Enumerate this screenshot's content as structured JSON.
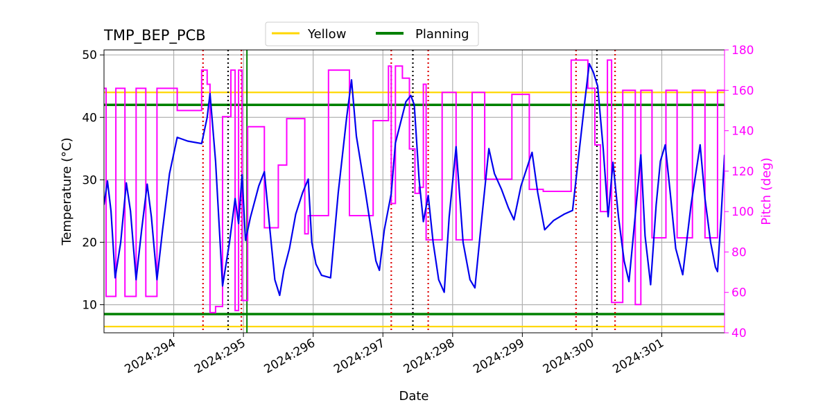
{
  "chart_data": {
    "type": "line",
    "title": "TMP_BEP_PCB",
    "xlabel": "Date",
    "ylabel": "Temperature ($^\\circ$C)",
    "ylabel_display": "Temperature (°C)",
    "y2label": "Pitch (deg)",
    "xlim": [
      293.0,
      301.9
    ],
    "ylim": [
      5.5,
      50.8
    ],
    "y2lim": [
      40,
      180
    ],
    "x_ticks": [
      294,
      295,
      296,
      297,
      298,
      299,
      300,
      301
    ],
    "x_tick_labels": [
      "2024:294",
      "2024:295",
      "2024:296",
      "2024:297",
      "2024:298",
      "2024:299",
      "2024:300",
      "2024:301"
    ],
    "y_ticks": [
      10,
      20,
      30,
      40,
      50
    ],
    "y_tick_labels": [
      "10",
      "20",
      "30",
      "40",
      "50"
    ],
    "y2_ticks": [
      40,
      60,
      80,
      100,
      120,
      140,
      160,
      180
    ],
    "y2_tick_labels": [
      "40",
      "60",
      "80",
      "100",
      "120",
      "140",
      "160",
      "180"
    ],
    "grid": true,
    "legend_position": "top-center",
    "legend": [
      {
        "name": "Yellow",
        "color": "#FFD700"
      },
      {
        "name": "Planning",
        "color": "#008000"
      }
    ],
    "colors": {
      "temperature": "#0000EE",
      "pitch": "#FF00FF",
      "yellow": "#FFD700",
      "planning": "#008000",
      "red_marker": "#DD0000",
      "black_marker": "#000000",
      "grid": "#B0B0B0"
    },
    "limits": {
      "yellow_high": 44.0,
      "yellow_low": 6.5,
      "planning_high": 42.0,
      "planning_low": 8.5
    },
    "markers": {
      "red_dotted_x": [
        294.42,
        294.97,
        297.12,
        297.65,
        299.77,
        300.33
      ],
      "black_dotted_x": [
        294.78,
        297.43,
        300.07
      ],
      "green_solid_x": [
        295.05
      ]
    },
    "series": [
      {
        "name": "Temperature",
        "axis": "left",
        "points": [
          [
            293.0,
            26
          ],
          [
            293.05,
            29.8
          ],
          [
            293.1,
            25
          ],
          [
            293.16,
            14.3
          ],
          [
            293.24,
            20
          ],
          [
            293.32,
            29.5
          ],
          [
            293.38,
            25
          ],
          [
            293.46,
            14
          ],
          [
            293.54,
            22
          ],
          [
            293.62,
            29.3
          ],
          [
            293.68,
            24
          ],
          [
            293.76,
            14
          ],
          [
            293.84,
            22
          ],
          [
            293.94,
            31
          ],
          [
            294.05,
            36.8
          ],
          [
            294.2,
            36.2
          ],
          [
            294.4,
            35.8
          ],
          [
            294.48,
            40
          ],
          [
            294.52,
            43.8
          ],
          [
            294.6,
            33
          ],
          [
            294.7,
            13
          ],
          [
            294.8,
            20
          ],
          [
            294.88,
            27
          ],
          [
            294.93,
            23
          ],
          [
            294.98,
            30.8
          ],
          [
            295.03,
            20.3
          ],
          [
            295.1,
            24
          ],
          [
            295.22,
            29
          ],
          [
            295.3,
            31.3
          ],
          [
            295.38,
            22
          ],
          [
            295.45,
            14
          ],
          [
            295.52,
            11.5
          ],
          [
            295.58,
            15.5
          ],
          [
            295.66,
            19
          ],
          [
            295.75,
            24.5
          ],
          [
            295.85,
            28
          ],
          [
            295.93,
            30.1
          ],
          [
            295.98,
            20
          ],
          [
            296.04,
            16.5
          ],
          [
            296.12,
            14.7
          ],
          [
            296.25,
            14.3
          ],
          [
            296.36,
            28
          ],
          [
            296.48,
            40
          ],
          [
            296.55,
            46
          ],
          [
            296.62,
            37
          ],
          [
            296.75,
            28
          ],
          [
            296.9,
            17
          ],
          [
            296.95,
            15.5
          ],
          [
            297.02,
            22
          ],
          [
            297.12,
            27.8
          ],
          [
            297.18,
            35.9
          ],
          [
            297.25,
            39
          ],
          [
            297.33,
            42.5
          ],
          [
            297.4,
            43.5
          ],
          [
            297.45,
            42
          ],
          [
            297.52,
            30
          ],
          [
            297.58,
            23.3
          ],
          [
            297.65,
            27.5
          ],
          [
            297.72,
            20
          ],
          [
            297.8,
            14
          ],
          [
            297.88,
            12
          ],
          [
            297.95,
            24
          ],
          [
            298.05,
            35.3
          ],
          [
            298.15,
            20
          ],
          [
            298.25,
            14
          ],
          [
            298.32,
            12.7
          ],
          [
            298.42,
            24
          ],
          [
            298.52,
            35
          ],
          [
            298.6,
            31
          ],
          [
            298.7,
            28.5
          ],
          [
            298.8,
            25.5
          ],
          [
            298.88,
            23.6
          ],
          [
            298.98,
            29
          ],
          [
            299.14,
            34.4
          ],
          [
            299.22,
            28
          ],
          [
            299.32,
            22
          ],
          [
            299.45,
            23.5
          ],
          [
            299.6,
            24.5
          ],
          [
            299.72,
            25.1
          ],
          [
            299.82,
            35
          ],
          [
            299.9,
            43
          ],
          [
            299.96,
            48.6
          ],
          [
            300.02,
            47.2
          ],
          [
            300.08,
            45
          ],
          [
            300.16,
            35
          ],
          [
            300.23,
            24.1
          ],
          [
            300.3,
            32.8
          ],
          [
            300.38,
            24
          ],
          [
            300.46,
            17
          ],
          [
            300.53,
            13.7
          ],
          [
            300.6,
            22
          ],
          [
            300.7,
            34
          ],
          [
            300.76,
            21
          ],
          [
            300.84,
            13.2
          ],
          [
            300.92,
            26
          ],
          [
            300.98,
            33
          ],
          [
            301.05,
            35.6
          ],
          [
            301.12,
            28
          ],
          [
            301.2,
            19
          ],
          [
            301.3,
            14.8
          ],
          [
            301.42,
            26
          ],
          [
            301.55,
            35.6
          ],
          [
            301.62,
            27
          ],
          [
            301.7,
            20
          ],
          [
            301.77,
            16
          ],
          [
            301.8,
            15.3
          ],
          [
            301.85,
            24
          ],
          [
            301.9,
            34
          ]
        ]
      },
      {
        "name": "Pitch",
        "axis": "right",
        "points": [
          [
            293.0,
            161
          ],
          [
            293.03,
            161
          ],
          [
            293.03,
            58
          ],
          [
            293.17,
            58
          ],
          [
            293.17,
            161
          ],
          [
            293.3,
            161
          ],
          [
            293.3,
            58
          ],
          [
            293.46,
            58
          ],
          [
            293.46,
            161
          ],
          [
            293.6,
            161
          ],
          [
            293.6,
            58
          ],
          [
            293.76,
            58
          ],
          [
            293.76,
            161
          ],
          [
            294.05,
            161
          ],
          [
            294.05,
            150
          ],
          [
            294.4,
            150
          ],
          [
            294.4,
            170
          ],
          [
            294.48,
            170
          ],
          [
            294.48,
            163
          ],
          [
            294.52,
            163
          ],
          [
            294.52,
            50
          ],
          [
            294.6,
            50
          ],
          [
            294.6,
            53
          ],
          [
            294.7,
            53
          ],
          [
            294.7,
            147
          ],
          [
            294.82,
            147
          ],
          [
            294.82,
            170
          ],
          [
            294.88,
            170
          ],
          [
            294.88,
            51
          ],
          [
            294.93,
            51
          ],
          [
            294.93,
            170
          ],
          [
            294.98,
            170
          ],
          [
            294.98,
            56
          ],
          [
            295.06,
            56
          ],
          [
            295.06,
            142
          ],
          [
            295.3,
            142
          ],
          [
            295.3,
            92
          ],
          [
            295.5,
            92
          ],
          [
            295.5,
            123
          ],
          [
            295.62,
            123
          ],
          [
            295.62,
            146
          ],
          [
            295.88,
            146
          ],
          [
            295.88,
            89
          ],
          [
            295.93,
            89
          ],
          [
            295.93,
            98
          ],
          [
            296.22,
            98
          ],
          [
            296.22,
            170
          ],
          [
            296.52,
            170
          ],
          [
            296.52,
            98
          ],
          [
            296.86,
            98
          ],
          [
            296.86,
            145
          ],
          [
            297.08,
            145
          ],
          [
            297.08,
            172
          ],
          [
            297.12,
            172
          ],
          [
            297.12,
            104
          ],
          [
            297.18,
            104
          ],
          [
            297.18,
            172
          ],
          [
            297.28,
            172
          ],
          [
            297.28,
            166
          ],
          [
            297.38,
            166
          ],
          [
            297.38,
            131
          ],
          [
            297.46,
            131
          ],
          [
            297.46,
            109
          ],
          [
            297.52,
            109
          ],
          [
            297.52,
            112
          ],
          [
            297.58,
            112
          ],
          [
            297.58,
            163
          ],
          [
            297.62,
            163
          ],
          [
            297.62,
            86
          ],
          [
            297.85,
            86
          ],
          [
            297.85,
            159
          ],
          [
            298.05,
            159
          ],
          [
            298.05,
            86
          ],
          [
            298.28,
            86
          ],
          [
            298.28,
            159
          ],
          [
            298.46,
            159
          ],
          [
            298.46,
            116
          ],
          [
            298.85,
            116
          ],
          [
            298.85,
            158
          ],
          [
            299.1,
            158
          ],
          [
            299.1,
            111
          ],
          [
            299.3,
            111
          ],
          [
            299.3,
            110
          ],
          [
            299.7,
            110
          ],
          [
            299.7,
            175
          ],
          [
            299.94,
            175
          ],
          [
            299.94,
            161
          ],
          [
            300.04,
            161
          ],
          [
            300.04,
            133
          ],
          [
            300.12,
            133
          ],
          [
            300.12,
            100
          ],
          [
            300.22,
            100
          ],
          [
            300.22,
            175
          ],
          [
            300.28,
            175
          ],
          [
            300.28,
            55
          ],
          [
            300.44,
            55
          ],
          [
            300.44,
            160
          ],
          [
            300.62,
            160
          ],
          [
            300.62,
            54
          ],
          [
            300.7,
            54
          ],
          [
            300.7,
            160
          ],
          [
            300.86,
            160
          ],
          [
            300.86,
            87
          ],
          [
            301.06,
            87
          ],
          [
            301.06,
            160
          ],
          [
            301.22,
            160
          ],
          [
            301.22,
            87
          ],
          [
            301.44,
            87
          ],
          [
            301.44,
            160
          ],
          [
            301.62,
            160
          ],
          [
            301.62,
            87
          ],
          [
            301.8,
            87
          ],
          [
            301.8,
            160
          ],
          [
            301.9,
            160
          ]
        ]
      }
    ]
  }
}
